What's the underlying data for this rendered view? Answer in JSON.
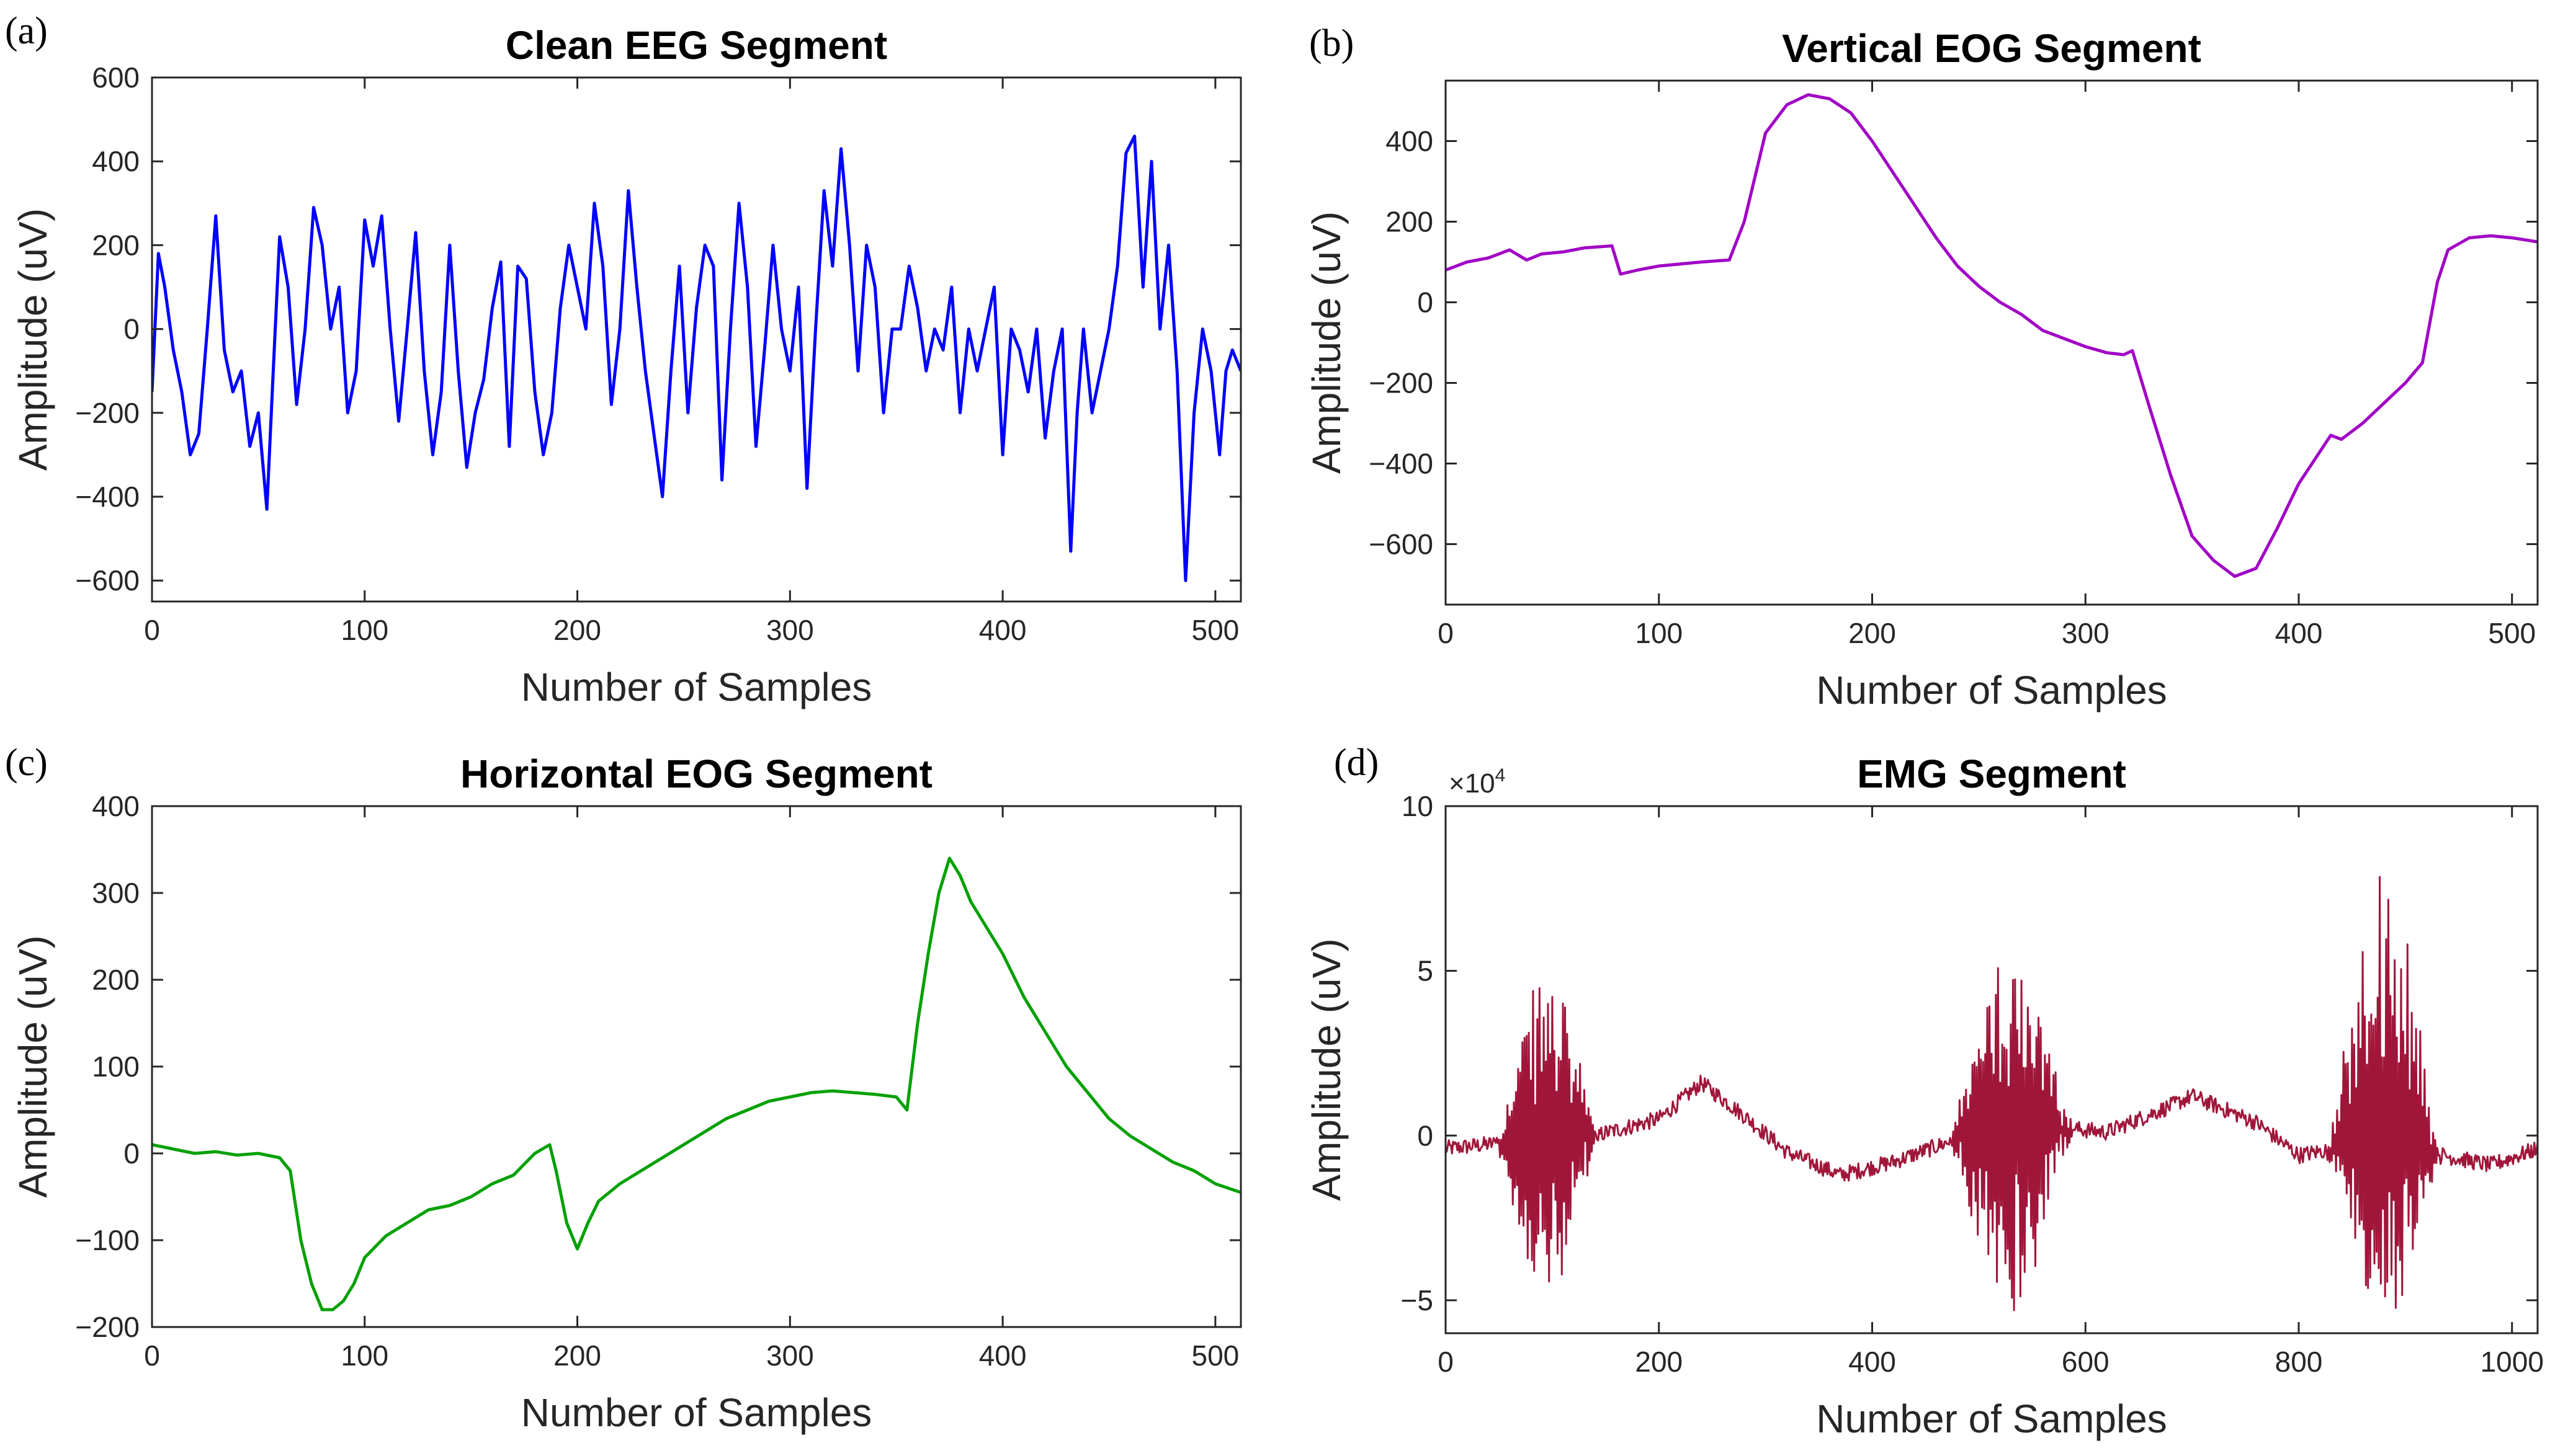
{
  "chart_data": [
    {
      "panel": "(a)",
      "type": "line",
      "title": "Clean EEG Segment",
      "xlabel": "Number of Samples",
      "ylabel": "Amplitude (uV)",
      "xlim": [
        0,
        512
      ],
      "ylim": [
        -650,
        600
      ],
      "xticks": [
        0,
        100,
        200,
        300,
        400,
        500
      ],
      "yticks": [
        -600,
        -400,
        -200,
        0,
        200,
        400,
        600
      ],
      "color": "#0000ff",
      "series": [
        {
          "name": "Clean EEG",
          "x": [
            0,
            3,
            6,
            10,
            14,
            18,
            22,
            26,
            30,
            34,
            38,
            42,
            46,
            50,
            54,
            57,
            60,
            64,
            68,
            72,
            76,
            80,
            84,
            88,
            92,
            96,
            100,
            104,
            108,
            112,
            116,
            120,
            124,
            128,
            132,
            136,
            140,
            144,
            148,
            152,
            156,
            160,
            164,
            168,
            172,
            176,
            180,
            184,
            188,
            192,
            196,
            200,
            204,
            208,
            212,
            216,
            220,
            224,
            228,
            232,
            236,
            240,
            244,
            248,
            252,
            256,
            260,
            264,
            268,
            272,
            276,
            280,
            284,
            288,
            292,
            296,
            300,
            304,
            308,
            312,
            316,
            320,
            324,
            328,
            332,
            336,
            340,
            344,
            348,
            352,
            356,
            360,
            364,
            368,
            372,
            376,
            380,
            384,
            388,
            392,
            396,
            400,
            404,
            408,
            412,
            416,
            420,
            424,
            428,
            432,
            435,
            438,
            442,
            446,
            450,
            454,
            458,
            462,
            466,
            470,
            474,
            478,
            482,
            486,
            490,
            494,
            498,
            502,
            505,
            508,
            512
          ],
          "values": [
            -150,
            180,
            100,
            -50,
            -150,
            -300,
            -250,
            0,
            270,
            -50,
            -150,
            -100,
            -280,
            -200,
            -430,
            -100,
            220,
            100,
            -180,
            0,
            290,
            200,
            0,
            100,
            -200,
            -100,
            260,
            150,
            270,
            0,
            -220,
            0,
            230,
            -100,
            -300,
            -150,
            200,
            -100,
            -330,
            -200,
            -120,
            50,
            160,
            -280,
            150,
            120,
            -150,
            -300,
            -200,
            50,
            200,
            100,
            0,
            300,
            150,
            -180,
            0,
            330,
            100,
            -100,
            -250,
            -400,
            -100,
            150,
            -200,
            50,
            200,
            150,
            -360,
            0,
            300,
            100,
            -280,
            -50,
            200,
            0,
            -100,
            100,
            -380,
            0,
            330,
            150,
            430,
            200,
            -100,
            200,
            100,
            -200,
            0,
            0,
            150,
            50,
            -100,
            0,
            -50,
            100,
            -200,
            0,
            -100,
            0,
            100,
            -300,
            0,
            -50,
            -150,
            0,
            -260,
            -100,
            0,
            -530,
            -200,
            0,
            -200,
            -100,
            0,
            150,
            420,
            460,
            100,
            400,
            0,
            200,
            -100,
            -600,
            -200,
            0,
            -100,
            -300,
            -100,
            -50,
            -100
          ]
        }
      ]
    },
    {
      "panel": "(b)",
      "type": "line",
      "title": "Vertical EOG Segment",
      "xlabel": "Number of Samples",
      "ylabel": "Amplitude (uV)",
      "xlim": [
        0,
        512
      ],
      "ylim": [
        -750,
        550
      ],
      "xticks": [
        0,
        100,
        200,
        300,
        400,
        500
      ],
      "yticks": [
        -600,
        -400,
        -200,
        0,
        200,
        400
      ],
      "color": "#a100c6",
      "series": [
        {
          "name": "Vertical EOG",
          "x": [
            0,
            10,
            20,
            30,
            38,
            45,
            55,
            65,
            78,
            82,
            90,
            100,
            110,
            120,
            133,
            140,
            150,
            160,
            170,
            180,
            190,
            200,
            210,
            220,
            230,
            240,
            250,
            260,
            270,
            280,
            290,
            300,
            310,
            318,
            322,
            330,
            340,
            350,
            360,
            370,
            380,
            390,
            400,
            410,
            415,
            420,
            430,
            440,
            450,
            458,
            465,
            470,
            480,
            490,
            500,
            512
          ],
          "values": [
            80,
            100,
            110,
            130,
            105,
            120,
            125,
            135,
            140,
            70,
            80,
            90,
            95,
            100,
            105,
            200,
            420,
            490,
            515,
            505,
            470,
            400,
            320,
            240,
            160,
            90,
            40,
            0,
            -30,
            -70,
            -90,
            -110,
            -125,
            -130,
            -120,
            -260,
            -430,
            -580,
            -640,
            -680,
            -660,
            -560,
            -450,
            -370,
            -330,
            -340,
            -300,
            -250,
            -200,
            -150,
            50,
            130,
            160,
            165,
            160,
            150
          ]
        }
      ]
    },
    {
      "panel": "(c)",
      "type": "line",
      "title": "Horizontal EOG Segment",
      "xlabel": "Number of Samples",
      "ylabel": "Amplitude (uV)",
      "xlim": [
        0,
        512
      ],
      "ylim": [
        -200,
        400
      ],
      "xticks": [
        0,
        100,
        200,
        300,
        400,
        500
      ],
      "yticks": [
        -200,
        -100,
        0,
        100,
        200,
        300,
        400
      ],
      "color": "#00a000",
      "series": [
        {
          "name": "Horizontal EOG",
          "x": [
            0,
            10,
            20,
            30,
            40,
            50,
            60,
            65,
            70,
            75,
            80,
            85,
            90,
            95,
            100,
            110,
            120,
            130,
            140,
            150,
            160,
            170,
            180,
            187,
            190,
            195,
            200,
            205,
            210,
            220,
            230,
            240,
            250,
            260,
            270,
            280,
            290,
            300,
            310,
            320,
            330,
            340,
            350,
            355,
            360,
            365,
            370,
            375,
            380,
            385,
            390,
            400,
            410,
            420,
            430,
            440,
            450,
            460,
            470,
            480,
            490,
            500,
            512
          ],
          "values": [
            10,
            5,
            0,
            2,
            -2,
            0,
            -5,
            -20,
            -100,
            -150,
            -180,
            -180,
            -170,
            -150,
            -120,
            -95,
            -80,
            -65,
            -60,
            -50,
            -35,
            -25,
            0,
            10,
            -20,
            -80,
            -110,
            -80,
            -55,
            -35,
            -20,
            -5,
            10,
            25,
            40,
            50,
            60,
            65,
            70,
            72,
            70,
            68,
            65,
            50,
            150,
            230,
            300,
            340,
            320,
            290,
            270,
            230,
            180,
            140,
            100,
            70,
            40,
            20,
            5,
            -10,
            -20,
            -35,
            -45
          ]
        }
      ]
    },
    {
      "panel": "(d)",
      "type": "line",
      "title": "EMG Segment",
      "xlabel": "Number of Samples",
      "ylabel": "Amplitude (uV)",
      "scale_label": "×10",
      "scale_exponent": "4",
      "xlim": [
        0,
        1024
      ],
      "ylim": [
        -6,
        10
      ],
      "xticks": [
        0,
        200,
        400,
        600,
        800,
        1000
      ],
      "yticks": [
        -5,
        0,
        5,
        10
      ],
      "color": "#a0163a",
      "bursts": [
        {
          "center": 95,
          "width": 50,
          "peak": 5,
          "trough": -5
        },
        {
          "center": 530,
          "width": 60,
          "peak": 5.5,
          "trough": -6
        },
        {
          "center": 880,
          "width": 55,
          "peak": 8.7,
          "trough": -5.4
        }
      ],
      "baseline": [
        {
          "x": 0,
          "y": -0.4
        },
        {
          "x": 60,
          "y": -0.2
        },
        {
          "x": 140,
          "y": 0.0
        },
        {
          "x": 200,
          "y": 0.5
        },
        {
          "x": 240,
          "y": 1.6
        },
        {
          "x": 280,
          "y": 0.6
        },
        {
          "x": 320,
          "y": -0.5
        },
        {
          "x": 370,
          "y": -1.2
        },
        {
          "x": 420,
          "y": -0.8
        },
        {
          "x": 480,
          "y": -0.1
        },
        {
          "x": 560,
          "y": 0.3
        },
        {
          "x": 620,
          "y": 0.1
        },
        {
          "x": 680,
          "y": 0.9
        },
        {
          "x": 700,
          "y": 1.2
        },
        {
          "x": 760,
          "y": 0.4
        },
        {
          "x": 800,
          "y": -0.6
        },
        {
          "x": 850,
          "y": -0.3
        },
        {
          "x": 920,
          "y": -0.5
        },
        {
          "x": 980,
          "y": -0.9
        },
        {
          "x": 1024,
          "y": -0.4
        }
      ]
    }
  ]
}
